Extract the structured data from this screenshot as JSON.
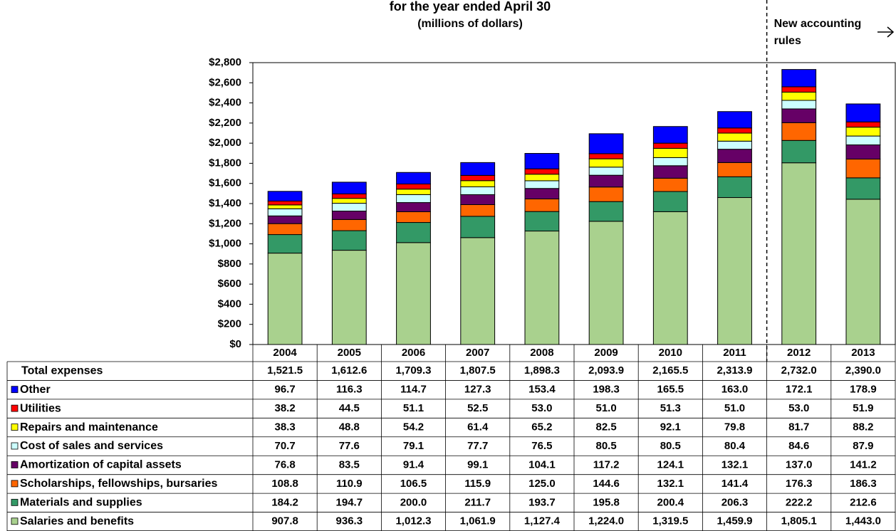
{
  "chart_data": {
    "type": "stacked-bar",
    "title": "for the year ended April 30",
    "subtitle": "(millions of dollars)",
    "annotation": "New accounting rules",
    "categories": [
      "2004",
      "2005",
      "2006",
      "2007",
      "2008",
      "2009",
      "2010",
      "2011",
      "2012",
      "2013"
    ],
    "ylim": [
      0,
      2800
    ],
    "yticks": [
      {
        "value": 0,
        "label": "$0"
      },
      {
        "value": 200,
        "label": "$200"
      },
      {
        "value": 400,
        "label": "$400"
      },
      {
        "value": 600,
        "label": "$600"
      },
      {
        "value": 800,
        "label": "$800"
      },
      {
        "value": 1000,
        "label": "$1,000"
      },
      {
        "value": 1200,
        "label": "$1,200"
      },
      {
        "value": 1400,
        "label": "$1,400"
      },
      {
        "value": 1600,
        "label": "$1,600"
      },
      {
        "value": 1800,
        "label": "$1,800"
      },
      {
        "value": 2000,
        "label": "$2,000"
      },
      {
        "value": 2200,
        "label": "$2,200"
      },
      {
        "value": 2400,
        "label": "$2,400"
      },
      {
        "value": 2600,
        "label": "$2,600"
      },
      {
        "value": 2800,
        "label": "$2,800"
      }
    ],
    "totals": {
      "name": "Total expenses",
      "values": [
        1521.5,
        1612.6,
        1709.3,
        1807.5,
        1898.3,
        2093.9,
        2165.5,
        2313.9,
        2732.0,
        2390.0
      ],
      "value_labels": [
        "1,521.5",
        "1,612.6",
        "1,709.3",
        "1,807.5",
        "1,898.3",
        "2,093.9",
        "2,165.5",
        "2,313.9",
        "2,732.0",
        "2,390.0"
      ]
    },
    "series": [
      {
        "name": "Salaries and benefits",
        "color": "#a9d18e",
        "values": [
          907.8,
          936.3,
          1012.3,
          1061.9,
          1127.4,
          1224.0,
          1319.5,
          1459.9,
          1805.1,
          1443.0
        ],
        "value_labels": [
          "907.8",
          "936.3",
          "1,012.3",
          "1,061.9",
          "1,127.4",
          "1,224.0",
          "1,319.5",
          "1,459.9",
          "1,805.1",
          "1,443.0"
        ]
      },
      {
        "name": "Materials and supplies",
        "color": "#339966",
        "values": [
          184.2,
          194.7,
          200.0,
          211.7,
          193.7,
          195.8,
          200.4,
          206.3,
          222.2,
          212.6
        ],
        "value_labels": [
          "184.2",
          "194.7",
          "200.0",
          "211.7",
          "193.7",
          "195.8",
          "200.4",
          "206.3",
          "222.2",
          "212.6"
        ]
      },
      {
        "name": "Scholarships, fellowships, bursaries",
        "color": "#ff6600",
        "values": [
          108.8,
          110.9,
          106.5,
          115.9,
          125.0,
          144.6,
          132.1,
          141.4,
          176.3,
          186.3
        ],
        "value_labels": [
          "108.8",
          "110.9",
          "106.5",
          "115.9",
          "125.0",
          "144.6",
          "132.1",
          "141.4",
          "176.3",
          "186.3"
        ]
      },
      {
        "name": "Amortization of capital assets",
        "color": "#660066",
        "values": [
          76.8,
          83.5,
          91.4,
          99.1,
          104.1,
          117.2,
          124.1,
          132.1,
          137.0,
          141.2
        ],
        "value_labels": [
          "76.8",
          "83.5",
          "91.4",
          "99.1",
          "104.1",
          "117.2",
          "124.1",
          "132.1",
          "137.0",
          "141.2"
        ]
      },
      {
        "name": "Cost of sales and services",
        "color": "#ccffff",
        "values": [
          70.7,
          77.6,
          79.1,
          77.7,
          76.5,
          80.5,
          80.5,
          80.4,
          84.6,
          87.9
        ],
        "value_labels": [
          "70.7",
          "77.6",
          "79.1",
          "77.7",
          "76.5",
          "80.5",
          "80.5",
          "80.4",
          "84.6",
          "87.9"
        ]
      },
      {
        "name": "Repairs and maintenance",
        "color": "#ffff00",
        "values": [
          38.3,
          48.8,
          54.2,
          61.4,
          65.2,
          82.5,
          92.1,
          79.8,
          81.7,
          88.2
        ],
        "value_labels": [
          "38.3",
          "48.8",
          "54.2",
          "61.4",
          "65.2",
          "82.5",
          "92.1",
          "79.8",
          "81.7",
          "88.2"
        ]
      },
      {
        "name": "Utilities",
        "color": "#ff0000",
        "values": [
          38.2,
          44.5,
          51.1,
          52.5,
          53.0,
          51.0,
          51.3,
          51.0,
          53.0,
          51.9
        ],
        "value_labels": [
          "38.2",
          "44.5",
          "51.1",
          "52.5",
          "53.0",
          "51.0",
          "51.3",
          "51.0",
          "53.0",
          "51.9"
        ]
      },
      {
        "name": "Other",
        "color": "#0000ff",
        "values": [
          96.7,
          116.3,
          114.7,
          127.3,
          153.4,
          198.3,
          165.5,
          163.0,
          172.1,
          178.9
        ],
        "value_labels": [
          "96.7",
          "116.3",
          "114.7",
          "127.3",
          "153.4",
          "198.3",
          "165.5",
          "163.0",
          "172.1",
          "178.9"
        ]
      }
    ]
  }
}
